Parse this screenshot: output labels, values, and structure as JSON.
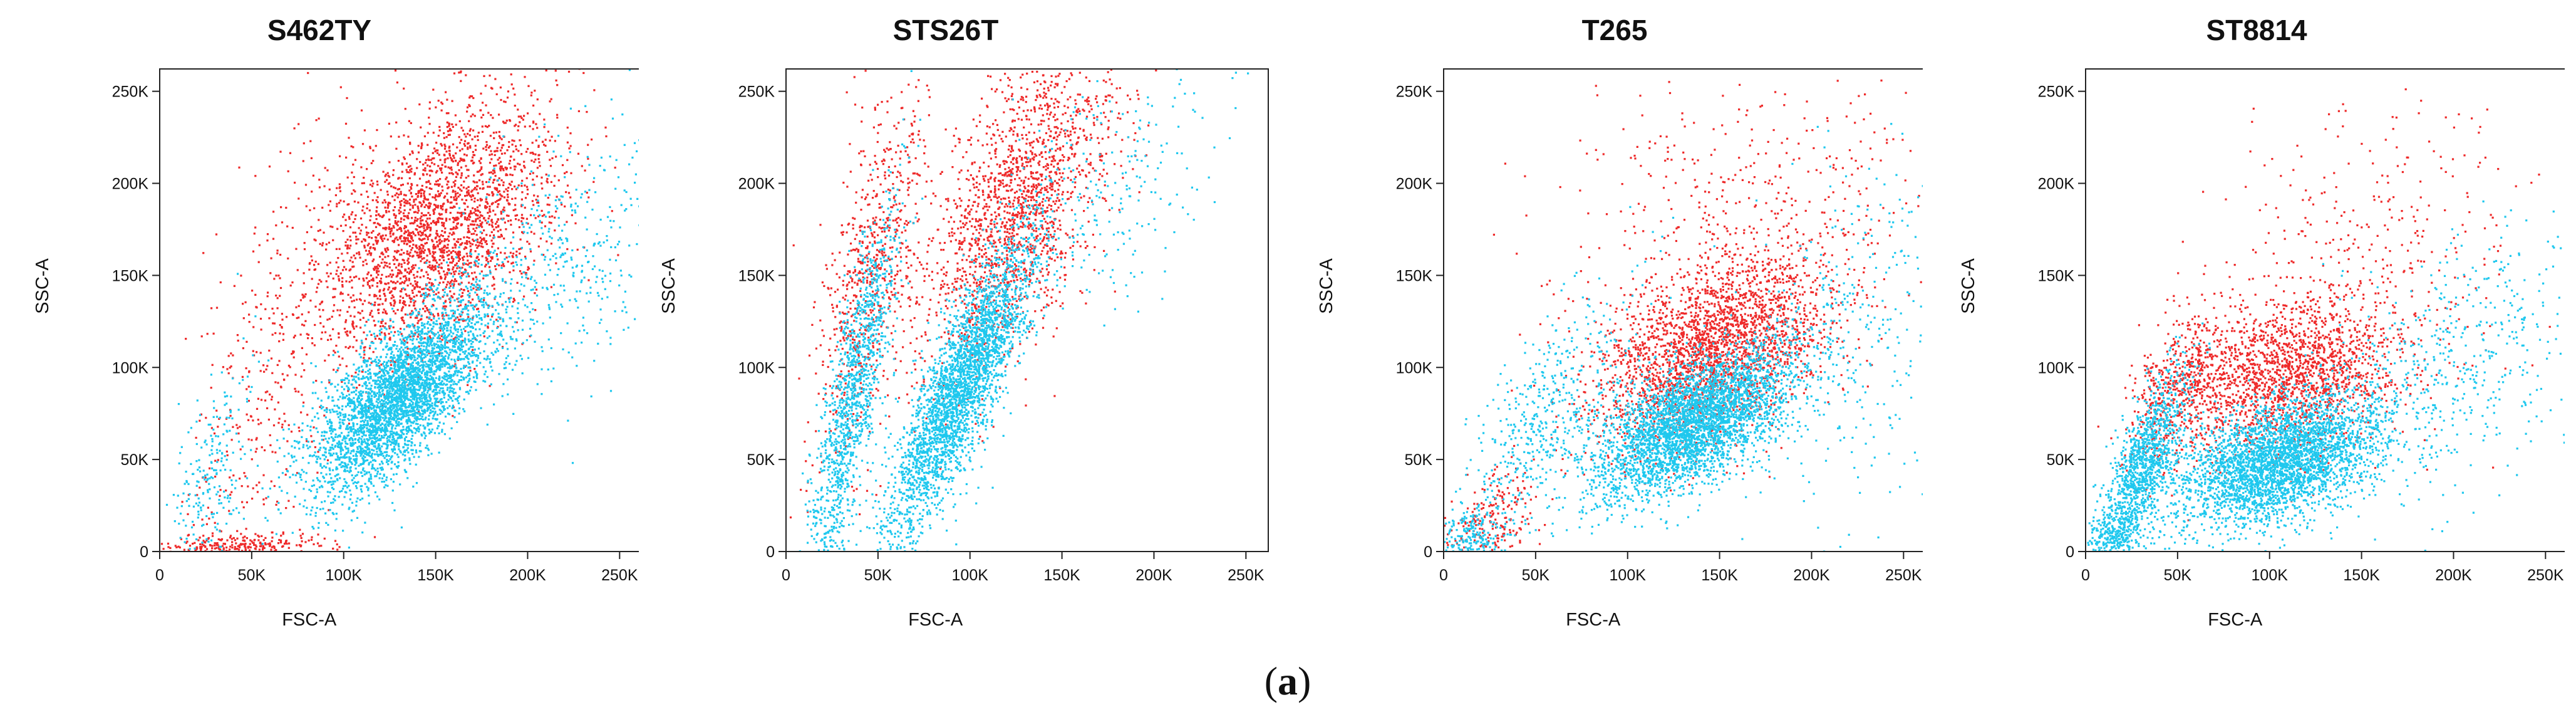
{
  "figure": {
    "caption_open": "(",
    "caption_letter": "a",
    "caption_close": ")"
  },
  "colors": {
    "red_population": "#ee2a2a",
    "cyan_population": "#1fc8ee"
  },
  "chart_data": [
    {
      "type": "scatter",
      "title": "S462TY",
      "xlabel": "FSC-A",
      "ylabel": "SSC-A",
      "xlim": [
        0,
        262144
      ],
      "ylim": [
        0,
        262144
      ],
      "x_ticks": [
        0,
        50000,
        100000,
        150000,
        200000,
        250000
      ],
      "x_tick_labels": [
        "0",
        "50K",
        "100K",
        "150K",
        "200K",
        "250K"
      ],
      "y_ticks": [
        0,
        50000,
        100000,
        150000,
        200000,
        250000
      ],
      "y_tick_labels": [
        "0",
        "50K",
        "100K",
        "150K",
        "200K",
        "250K"
      ],
      "grid": false,
      "legend": "none",
      "series": [
        {
          "color": "#ee2a2a",
          "clusters": [
            {
              "cx": 150000,
              "cy": 175000,
              "sx": 33000,
              "sy": 35000,
              "rho": 0.45,
              "n": 2600
            },
            {
              "cx": 60000,
              "cy": 100000,
              "sx": 22000,
              "sy": 65000,
              "rho": 0.6,
              "n": 350
            },
            {
              "cx": 40000,
              "cy": 4000,
              "sx": 25000,
              "sy": 3000,
              "rho": 0.0,
              "n": 250
            }
          ]
        },
        {
          "color": "#1fc8ee",
          "clusters": [
            {
              "cx": 130000,
              "cy": 85000,
              "sx": 24000,
              "sy": 26000,
              "rho": 0.7,
              "n": 3600
            },
            {
              "cx": 215000,
              "cy": 155000,
              "sx": 32000,
              "sy": 38000,
              "rho": 0.5,
              "n": 450
            },
            {
              "cx": 25000,
              "cy": 35000,
              "sx": 12000,
              "sy": 30000,
              "rho": 0.5,
              "n": 250
            }
          ]
        }
      ]
    },
    {
      "type": "scatter",
      "title": "STS26T",
      "xlabel": "FSC-A",
      "ylabel": "SSC-A",
      "xlim": [
        0,
        262144
      ],
      "ylim": [
        0,
        262144
      ],
      "x_ticks": [
        0,
        50000,
        100000,
        150000,
        200000,
        250000
      ],
      "x_tick_labels": [
        "0",
        "50K",
        "100K",
        "150K",
        "200K",
        "250K"
      ],
      "y_ticks": [
        0,
        50000,
        100000,
        150000,
        200000,
        250000
      ],
      "y_tick_labels": [
        "0",
        "50K",
        "100K",
        "150K",
        "200K",
        "250K"
      ],
      "grid": false,
      "legend": "none",
      "series": [
        {
          "color": "#ee2a2a",
          "clusters": [
            {
              "cx": 125000,
              "cy": 185000,
              "sx": 26000,
              "sy": 45000,
              "rho": 0.6,
              "n": 1800
            },
            {
              "cx": 45000,
              "cy": 150000,
              "sx": 15000,
              "sy": 50000,
              "rho": 0.6,
              "n": 700
            }
          ]
        },
        {
          "color": "#1fc8ee",
          "clusters": [
            {
              "cx": 95000,
              "cy": 90000,
              "sx": 20000,
              "sy": 40000,
              "rho": 0.85,
              "n": 3000
            },
            {
              "cx": 35000,
              "cy": 80000,
              "sx": 13000,
              "sy": 55000,
              "rho": 0.85,
              "n": 1300
            },
            {
              "cx": 170000,
              "cy": 195000,
              "sx": 30000,
              "sy": 35000,
              "rho": 0.4,
              "n": 250
            }
          ]
        }
      ]
    },
    {
      "type": "scatter",
      "title": "T265",
      "xlabel": "FSC-A",
      "ylabel": "SSC-A",
      "xlim": [
        0,
        262144
      ],
      "ylim": [
        0,
        262144
      ],
      "x_ticks": [
        0,
        50000,
        100000,
        150000,
        200000,
        250000
      ],
      "x_tick_labels": [
        "0",
        "50K",
        "100K",
        "150K",
        "200K",
        "250K"
      ],
      "y_ticks": [
        0,
        50000,
        100000,
        150000,
        200000,
        250000
      ],
      "y_tick_labels": [
        "0",
        "50K",
        "100K",
        "150K",
        "200K",
        "250K"
      ],
      "grid": false,
      "legend": "none",
      "series": [
        {
          "color": "#ee2a2a",
          "clusters": [
            {
              "cx": 145000,
              "cy": 110000,
              "sx": 32000,
              "sy": 26000,
              "rho": 0.4,
              "n": 2600
            },
            {
              "cx": 170000,
              "cy": 190000,
              "sx": 50000,
              "sy": 40000,
              "rho": 0.2,
              "n": 400
            },
            {
              "cx": 25000,
              "cy": 15000,
              "sx": 12000,
              "sy": 15000,
              "rho": 0.3,
              "n": 250
            }
          ]
        },
        {
          "color": "#1fc8ee",
          "clusters": [
            {
              "cx": 135000,
              "cy": 70000,
              "sx": 27000,
              "sy": 20000,
              "rho": 0.6,
              "n": 3600
            },
            {
              "cx": 55000,
              "cy": 70000,
              "sx": 22000,
              "sy": 35000,
              "rho": 0.7,
              "n": 500
            },
            {
              "cx": 225000,
              "cy": 125000,
              "sx": 30000,
              "sy": 45000,
              "rho": 0.3,
              "n": 350
            },
            {
              "cx": 15000,
              "cy": 8000,
              "sx": 8000,
              "sy": 8000,
              "rho": 0.0,
              "n": 200
            }
          ]
        }
      ]
    },
    {
      "type": "scatter",
      "title": "ST8814",
      "xlabel": "FSC-A",
      "ylabel": "SSC-A",
      "xlim": [
        0,
        262144
      ],
      "ylim": [
        0,
        262144
      ],
      "x_ticks": [
        0,
        50000,
        100000,
        150000,
        200000,
        250000
      ],
      "x_tick_labels": [
        "0",
        "50K",
        "100K",
        "150K",
        "200K",
        "250K"
      ],
      "y_ticks": [
        0,
        50000,
        100000,
        150000,
        200000,
        250000
      ],
      "y_tick_labels": [
        "0",
        "50K",
        "100K",
        "150K",
        "200K",
        "250K"
      ],
      "grid": false,
      "legend": "none",
      "series": [
        {
          "color": "#ee2a2a",
          "clusters": [
            {
              "cx": 110000,
              "cy": 95000,
              "sx": 30000,
              "sy": 22000,
              "rho": 0.3,
              "n": 1800
            },
            {
              "cx": 50000,
              "cy": 90000,
              "sx": 15000,
              "sy": 20000,
              "rho": 0.5,
              "n": 500
            },
            {
              "cx": 150000,
              "cy": 165000,
              "sx": 45000,
              "sy": 45000,
              "rho": 0.1,
              "n": 350
            }
          ]
        },
        {
          "color": "#1fc8ee",
          "clusters": [
            {
              "cx": 105000,
              "cy": 50000,
              "sx": 28000,
              "sy": 18000,
              "rho": 0.5,
              "n": 3400
            },
            {
              "cx": 30000,
              "cy": 45000,
              "sx": 12000,
              "sy": 25000,
              "rho": 0.75,
              "n": 1200
            },
            {
              "cx": 200000,
              "cy": 100000,
              "sx": 35000,
              "sy": 35000,
              "rho": 0.4,
              "n": 500
            },
            {
              "cx": 15000,
              "cy": 6000,
              "sx": 8000,
              "sy": 6000,
              "rho": 0.0,
              "n": 200
            }
          ]
        }
      ]
    }
  ]
}
